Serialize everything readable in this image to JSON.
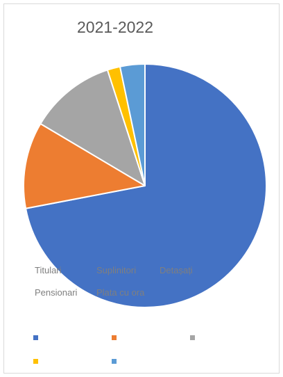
{
  "chart_data": {
    "type": "pie",
    "title": "2021-2022",
    "categories": [
      "Titulari",
      "Suplinitori",
      "Detașați",
      "Pensionari",
      "Plata cu ora"
    ],
    "values": [
      72.0,
      11.5,
      11.5,
      1.7,
      3.3
    ],
    "colors": [
      "#4472c4",
      "#ed7d31",
      "#a5a5a5",
      "#ffc000",
      "#5b9bd5"
    ],
    "legend": "bottom",
    "slice_border_color": "#ffffff"
  }
}
